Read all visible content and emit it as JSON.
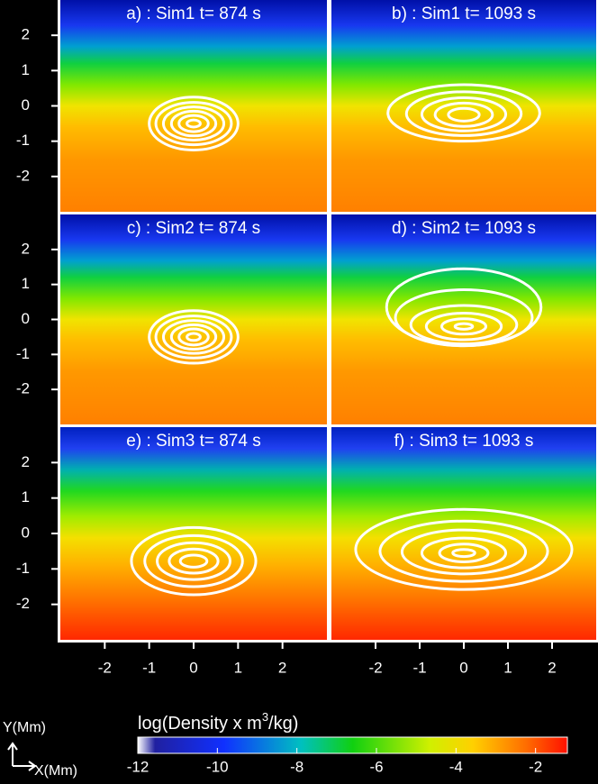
{
  "chart_data": [
    {
      "type": "contour",
      "title": "a) : Sim1 t= 874 s",
      "xlim": [
        -3,
        3
      ],
      "ylim": [
        -3,
        3
      ],
      "yticks": [
        -2,
        -1,
        0,
        1,
        2
      ],
      "contours": [
        {
          "x": 0,
          "y": -0.5,
          "rx": 1.0,
          "ry": 0.75
        },
        {
          "x": 0,
          "y": -0.5,
          "rx": 0.85,
          "ry": 0.6
        },
        {
          "x": 0,
          "y": -0.5,
          "rx": 0.68,
          "ry": 0.47
        },
        {
          "x": 0,
          "y": -0.5,
          "rx": 0.5,
          "ry": 0.35
        },
        {
          "x": 0,
          "y": -0.5,
          "rx": 0.33,
          "ry": 0.23
        },
        {
          "x": 0,
          "y": -0.5,
          "rx": 0.15,
          "ry": 0.1
        }
      ]
    },
    {
      "type": "contour",
      "title": "b) : Sim1 t= 1093 s",
      "xlim": [
        -3,
        3
      ],
      "ylim": [
        -3,
        3
      ],
      "contours": [
        {
          "x": 0,
          "y": -0.2,
          "rx": 1.72,
          "ry": 0.8
        },
        {
          "x": 0,
          "y": -0.22,
          "rx": 1.3,
          "ry": 0.62
        },
        {
          "x": 0,
          "y": -0.24,
          "rx": 0.95,
          "ry": 0.47
        },
        {
          "x": 0,
          "y": -0.25,
          "rx": 0.65,
          "ry": 0.33
        },
        {
          "x": 0,
          "y": -0.25,
          "rx": 0.35,
          "ry": 0.18
        }
      ]
    },
    {
      "type": "contour",
      "title": "c) : Sim2 t= 874 s",
      "xlim": [
        -3,
        3
      ],
      "ylim": [
        -3,
        3
      ],
      "yticks": [
        -2,
        -1,
        0,
        1,
        2
      ],
      "contours": [
        {
          "x": 0,
          "y": -0.5,
          "rx": 1.0,
          "ry": 0.75
        },
        {
          "x": 0,
          "y": -0.5,
          "rx": 0.85,
          "ry": 0.6
        },
        {
          "x": 0,
          "y": -0.5,
          "rx": 0.68,
          "ry": 0.47
        },
        {
          "x": 0,
          "y": -0.5,
          "rx": 0.5,
          "ry": 0.35
        },
        {
          "x": 0,
          "y": -0.5,
          "rx": 0.33,
          "ry": 0.23
        },
        {
          "x": 0,
          "y": -0.5,
          "rx": 0.15,
          "ry": 0.1
        }
      ]
    },
    {
      "type": "contour",
      "title": "d) : Sim2 t= 1093 s",
      "xlim": [
        -3,
        3
      ],
      "ylim": [
        -3,
        3
      ],
      "contours": [
        {
          "x": 0,
          "y": 0.35,
          "rx": 1.75,
          "ry": 1.1
        },
        {
          "x": 0,
          "y": 0.05,
          "rx": 1.55,
          "ry": 0.8
        },
        {
          "x": 0,
          "y": -0.15,
          "rx": 1.2,
          "ry": 0.55
        },
        {
          "x": 0,
          "y": -0.2,
          "rx": 0.85,
          "ry": 0.38
        },
        {
          "x": 0,
          "y": -0.2,
          "rx": 0.5,
          "ry": 0.22
        },
        {
          "x": 0,
          "y": -0.2,
          "rx": 0.2,
          "ry": 0.08
        }
      ]
    },
    {
      "type": "contour",
      "title": "e) : Sim3 t= 874 s",
      "xlim": [
        -3,
        3
      ],
      "ylim": [
        -3,
        3
      ],
      "xticks": [
        -2,
        -1,
        0,
        1,
        2
      ],
      "yticks": [
        -2,
        -1,
        0,
        1,
        2
      ],
      "contours": [
        {
          "x": 0,
          "y": -0.78,
          "rx": 1.4,
          "ry": 0.95
        },
        {
          "x": 0,
          "y": -0.78,
          "rx": 1.1,
          "ry": 0.72
        },
        {
          "x": 0,
          "y": -0.78,
          "rx": 0.82,
          "ry": 0.52
        },
        {
          "x": 0,
          "y": -0.78,
          "rx": 0.55,
          "ry": 0.34
        },
        {
          "x": 0,
          "y": -0.78,
          "rx": 0.3,
          "ry": 0.17
        }
      ]
    },
    {
      "type": "contour",
      "title": "f) : Sim3 t= 1093 s",
      "xlim": [
        -3,
        3
      ],
      "ylim": [
        -3,
        3
      ],
      "xticks": [
        -2,
        -1,
        0,
        1,
        2
      ],
      "contours": [
        {
          "x": 0,
          "y": -0.45,
          "rx": 2.45,
          "ry": 1.13
        },
        {
          "x": 0,
          "y": -0.5,
          "rx": 1.9,
          "ry": 0.85
        },
        {
          "x": 0,
          "y": -0.52,
          "rx": 1.4,
          "ry": 0.62
        },
        {
          "x": 0,
          "y": -0.55,
          "rx": 0.95,
          "ry": 0.42
        },
        {
          "x": 0,
          "y": -0.55,
          "rx": 0.55,
          "ry": 0.25
        },
        {
          "x": 0,
          "y": -0.55,
          "rx": 0.25,
          "ry": 0.1
        }
      ]
    },
    {
      "type": "colorbar",
      "label": [
        "log(Density x m",
        "3",
        "/kg)"
      ],
      "xlim": [
        -12,
        -1.2
      ],
      "xticks": [
        -12,
        -10,
        -8,
        -6,
        -4,
        -2
      ]
    }
  ],
  "orientation": {
    "y": "Y(Mm)",
    "x": "X(Mm)"
  }
}
